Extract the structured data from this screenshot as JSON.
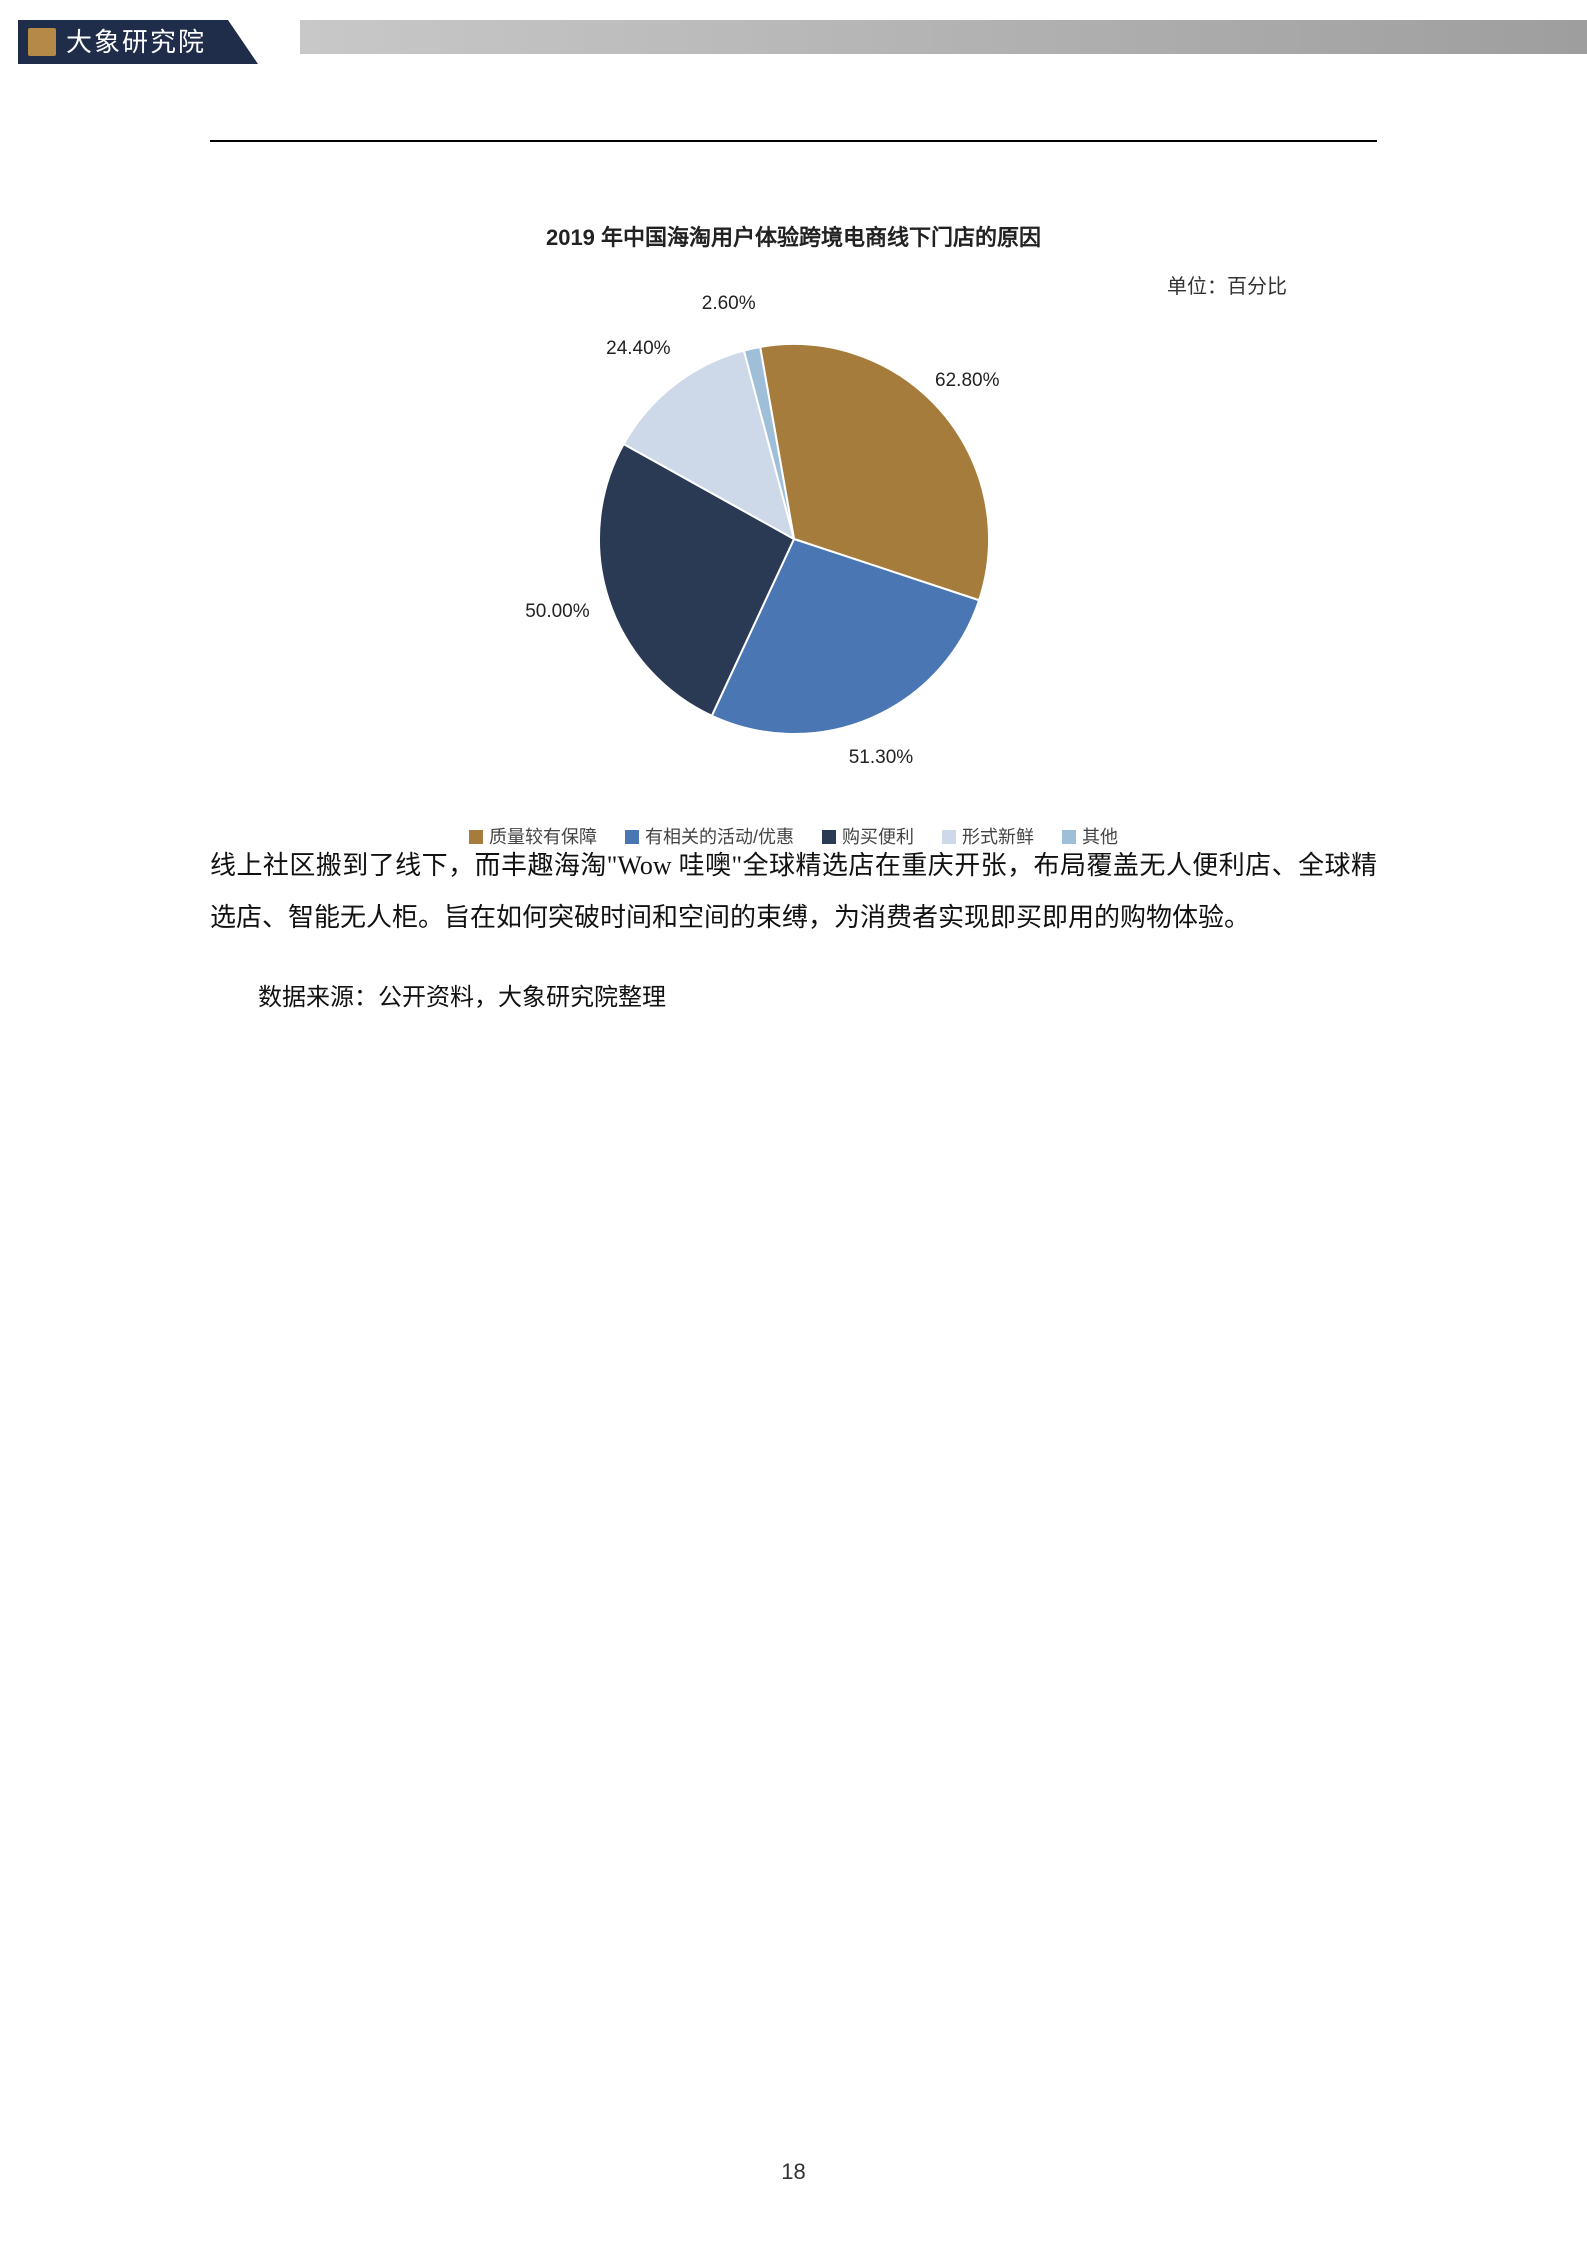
{
  "header": {
    "logo_text": "大象研究院"
  },
  "chart": {
    "type": "pie",
    "title": "2019 年中国海淘用户体验跨境电商线下门店的原因",
    "unit_label": "单位：百分比",
    "background_color": "#ffffff",
    "title_fontsize": 22,
    "label_fontsize": 19,
    "slices": [
      {
        "name": "质量较有保障",
        "value": 62.8,
        "label": "62.80%",
        "color": "#a67c3c"
      },
      {
        "name": "有相关的活动/优惠",
        "value": 51.3,
        "label": "51.30%",
        "color": "#4a77b4"
      },
      {
        "name": "购买便利",
        "value": 50.0,
        "label": "50.00%",
        "color": "#2a3a55"
      },
      {
        "name": "形式新鲜",
        "value": 24.4,
        "label": "24.40%",
        "color": "#cdd9e9"
      },
      {
        "name": "其他",
        "value": 2.6,
        "label": "2.60%",
        "color": "#9fbfd9"
      }
    ],
    "legend": [
      {
        "label": "质量较有保障",
        "color": "#a67c3c"
      },
      {
        "label": "有相关的活动/优惠",
        "color": "#4a77b4"
      },
      {
        "label": "购买便利",
        "color": "#2a3a55"
      },
      {
        "label": "形式新鲜",
        "color": "#cdd9e9"
      },
      {
        "label": "其他",
        "color": "#9fbfd9"
      }
    ]
  },
  "body": {
    "paragraph": "线上社区搬到了线下，而丰趣海淘\"Wow 哇噢\"全球精选店在重庆开张，布局覆盖无人便利店、全球精选店、智能无人柜。旨在如何突破时间和空间的束缚，为消费者实现即买即用的购物体验。",
    "source": "数据来源：公开资料，大象研究院整理"
  },
  "page_number": "18"
}
